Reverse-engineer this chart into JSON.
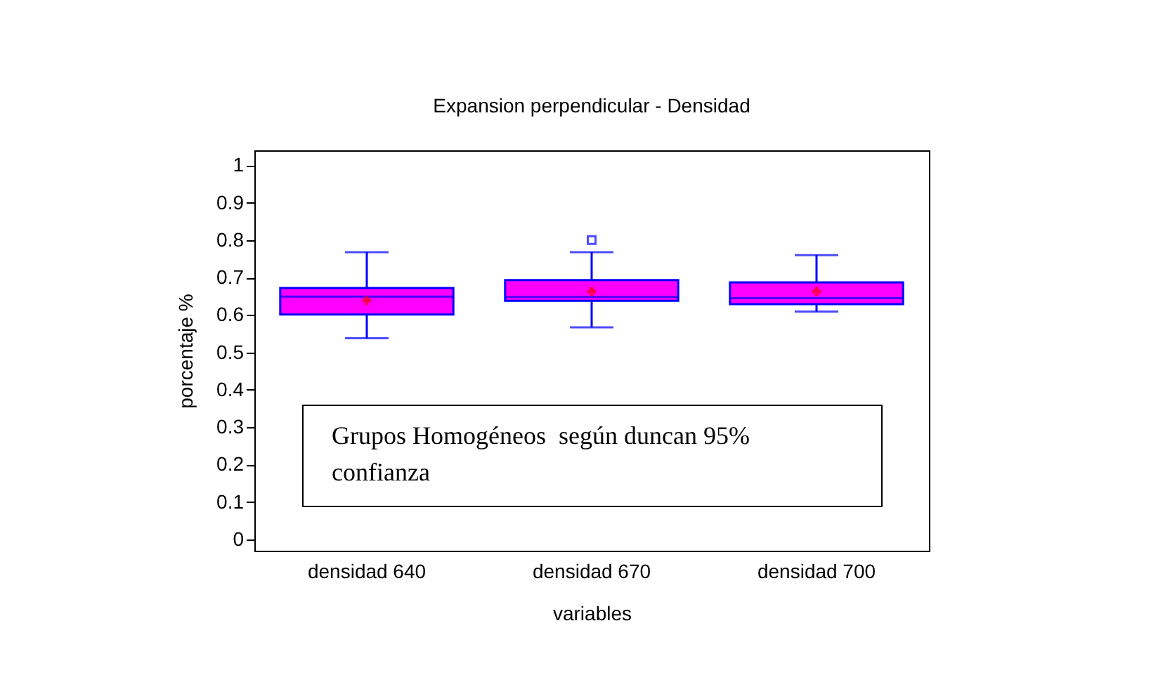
{
  "chart_data": {
    "type": "box",
    "title": "Expansion perpendicular - Densidad",
    "xlabel": "variables",
    "ylabel": "porcentaje %",
    "categories": [
      "densidad 640",
      "densidad 670",
      "densidad 700"
    ],
    "color": "#ff00ff",
    "boxes": [
      {
        "low": 0.538,
        "q1": 0.601,
        "median": 0.649,
        "q3": 0.672,
        "high": 0.768,
        "mean": 0.639
      },
      {
        "low": 0.567,
        "q1": 0.638,
        "median": 0.648,
        "q3": 0.693,
        "high": 0.768,
        "mean": 0.663,
        "outliers": [
          0.8
        ]
      },
      {
        "low": 0.609,
        "q1": 0.629,
        "median": 0.645,
        "q3": 0.687,
        "high": 0.76,
        "mean": 0.663
      }
    ],
    "ylim": [
      -0.03,
      1.04
    ],
    "yticks": [
      0,
      0.1,
      0.2,
      0.3,
      0.4,
      0.5,
      0.6,
      0.7,
      0.8,
      0.9,
      1
    ],
    "grid": false,
    "annotations": [
      "Grupos Homogéneos  según duncan 95% confianza"
    ]
  }
}
